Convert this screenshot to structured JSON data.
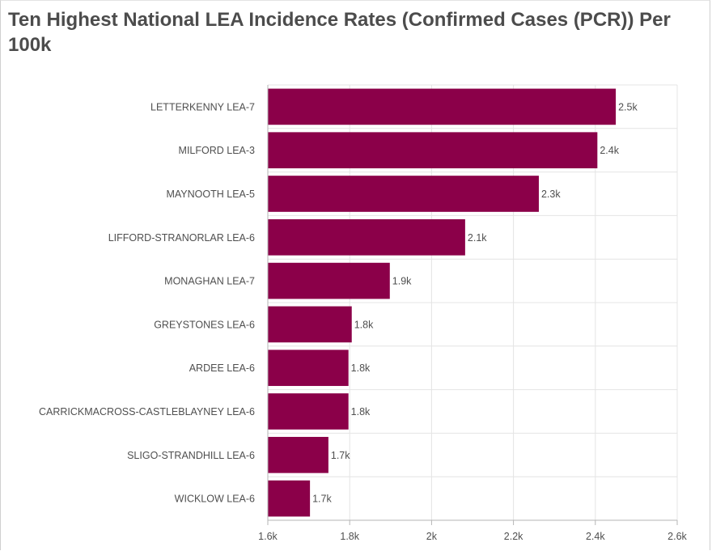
{
  "title": "Ten Highest National LEA Incidence Rates (Confirmed Cases (PCR)) Per 100k",
  "colors": {
    "bar": "#8b0049",
    "grid": "#e4e4e4",
    "axis": "#b5b5b5",
    "text": "#4f4f4f",
    "title": "#4c4c4c"
  },
  "chart_data": {
    "type": "bar",
    "orientation": "horizontal",
    "title": "Ten Highest National LEA Incidence Rates (Confirmed Cases (PCR)) Per 100k",
    "xlabel": "",
    "ylabel": "",
    "xlim": [
      1600,
      2600
    ],
    "grid": true,
    "x_ticks": [
      1600,
      1800,
      2000,
      2200,
      2400,
      2600
    ],
    "x_tick_labels": [
      "1.6k",
      "1.8k",
      "2k",
      "2.2k",
      "2.4k",
      "2.6k"
    ],
    "categories": [
      "LETTERKENNY LEA-7",
      "MILFORD LEA-3",
      "MAYNOOTH LEA-5",
      "LIFFORD-STRANORLAR LEA-6",
      "MONAGHAN LEA-7",
      "GREYSTONES LEA-6",
      "ARDEE LEA-6",
      "CARRICKMACROSS-CASTLEBLAYNEY LEA-6",
      "SLIGO-STRANDHILL LEA-6",
      "WICKLOW LEA-6"
    ],
    "values": [
      2450,
      2405,
      2262,
      2082,
      1898,
      1805,
      1797,
      1797,
      1748,
      1703
    ],
    "data_labels": [
      "2.5k",
      "2.4k",
      "2.3k",
      "2.1k",
      "1.9k",
      "1.8k",
      "1.8k",
      "1.8k",
      "1.7k",
      "1.7k"
    ]
  }
}
